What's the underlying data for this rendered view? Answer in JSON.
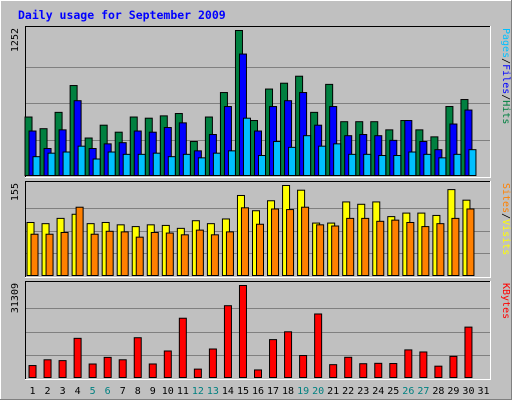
{
  "chart_data": {
    "type": "bar",
    "title": "Daily usage for September 2009",
    "categories": [
      "1",
      "2",
      "3",
      "4",
      "5",
      "6",
      "7",
      "8",
      "9",
      "10",
      "11",
      "12",
      "13",
      "14",
      "15",
      "16",
      "17",
      "18",
      "19",
      "20",
      "21",
      "22",
      "23",
      "24",
      "25",
      "26",
      "27",
      "28",
      "29",
      "30",
      "31"
    ],
    "weekend_days": [
      "5",
      "6",
      "12",
      "13",
      "19",
      "20",
      "26",
      "27"
    ],
    "panels": [
      {
        "name": "requests",
        "max_label": "1252",
        "ymax": 1252,
        "series": [
          {
            "name": "Hits",
            "color": "#008040",
            "values": [
              510,
              410,
              550,
              780,
              330,
              440,
              380,
              510,
              500,
              520,
              540,
              300,
              510,
              720,
              1252,
              480,
              750,
              800,
              860,
              550,
              790,
              470,
              470,
              470,
              400,
              480,
              400,
              340,
              600,
              660,
              0
            ]
          },
          {
            "name": "Files",
            "color": "#0000ff",
            "values": [
              390,
              240,
              400,
              650,
              240,
              280,
              290,
              390,
              380,
              420,
              460,
              220,
              360,
              600,
              1050,
              390,
              600,
              650,
              720,
              440,
              600,
              350,
              360,
              350,
              310,
              480,
              300,
              230,
              450,
              570,
              0
            ]
          },
          {
            "name": "Pages",
            "color": "#00c0ff",
            "values": [
              170,
              200,
              210,
              260,
              150,
              210,
              190,
              190,
              200,
              170,
              190,
              160,
              200,
              220,
              500,
              180,
              300,
              250,
              350,
              260,
              280,
              190,
              190,
              180,
              180,
              210,
              190,
              160,
              190,
              230,
              0
            ]
          }
        ],
        "legend_seps": [
          "/",
          "/"
        ]
      },
      {
        "name": "visitors",
        "max_label": "155",
        "ymax": 155,
        "series": [
          {
            "name": "Visits",
            "color": "#ffff00",
            "values": [
              92,
              90,
              99,
              106,
              90,
              92,
              88,
              85,
              88,
              87,
              82,
              95,
              90,
              98,
              138,
              112,
              129,
              155,
              147,
              91,
              91,
              127,
              123,
              127,
              102,
              108,
              108,
              104,
              148,
              130,
              0
            ]
          },
          {
            "name": "Sites",
            "color": "#ff8000",
            "values": [
              72,
              72,
              75,
              118,
              72,
              77,
              76,
              67,
              75,
              74,
              71,
              79,
              71,
              76,
              117,
              89,
              115,
              114,
              118,
              88,
              86,
              99,
              99,
              94,
              96,
              92,
              85,
              90,
              99,
              115,
              0
            ]
          }
        ],
        "legend_seps": [
          "/"
        ]
      },
      {
        "name": "kbytes",
        "max_label": "31309",
        "ymax": 31309,
        "series": [
          {
            "name": "KBytes",
            "color": "#ff0000",
            "values": [
              4360,
              6300,
              6020,
              13520,
              4880,
              7110,
              6300,
              13730,
              4890,
              9260,
              20290,
              3160,
              9930,
              24510,
              31309,
              2880,
              13090,
              15720,
              7730,
              21720,
              4660,
              7140,
              4980,
              5110,
              5040,
              9630,
              8930,
              4150,
              7450,
              17300,
              0
            ]
          }
        ],
        "legend_seps": []
      }
    ]
  }
}
